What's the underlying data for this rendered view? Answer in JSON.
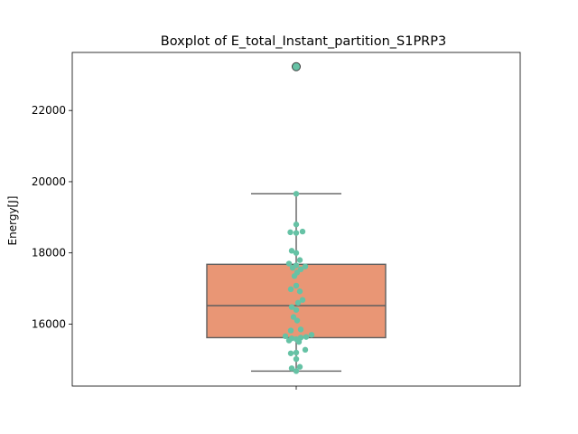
{
  "chart_data": {
    "type": "box",
    "title": "Boxplot of E_total_Instant_partition_S1PRP3",
    "xlabel": "",
    "ylabel": "Energy[J]",
    "ylim": [
      14260,
      23630
    ],
    "yticks": [
      16000,
      18000,
      20000,
      22000
    ],
    "grid": false,
    "box": {
      "whisker_low": 14680,
      "q1": 15620,
      "median": 16520,
      "q3": 17680,
      "whisker_high": 19660,
      "outliers": [
        23230
      ]
    },
    "points": [
      {
        "y": 23230,
        "offset": 0.0
      },
      {
        "y": 19660,
        "offset": 0.0
      },
      {
        "y": 18800,
        "offset": 0.0
      },
      {
        "y": 18600,
        "offset": 0.14
      },
      {
        "y": 18580,
        "offset": -0.13
      },
      {
        "y": 18560,
        "offset": 0.0
      },
      {
        "y": 18060,
        "offset": -0.1
      },
      {
        "y": 18000,
        "offset": 0.0
      },
      {
        "y": 17800,
        "offset": 0.08
      },
      {
        "y": 17700,
        "offset": -0.16
      },
      {
        "y": 17650,
        "offset": 0.0
      },
      {
        "y": 17620,
        "offset": 0.2
      },
      {
        "y": 17580,
        "offset": -0.08
      },
      {
        "y": 17540,
        "offset": 0.1
      },
      {
        "y": 17450,
        "offset": 0.02
      },
      {
        "y": 17350,
        "offset": -0.04
      },
      {
        "y": 17080,
        "offset": 0.0
      },
      {
        "y": 16980,
        "offset": -0.12
      },
      {
        "y": 16920,
        "offset": 0.08
      },
      {
        "y": 16680,
        "offset": 0.14
      },
      {
        "y": 16600,
        "offset": 0.04
      },
      {
        "y": 16480,
        "offset": -0.1
      },
      {
        "y": 16400,
        "offset": 0.0
      },
      {
        "y": 16200,
        "offset": -0.06
      },
      {
        "y": 16100,
        "offset": 0.02
      },
      {
        "y": 15850,
        "offset": 0.1
      },
      {
        "y": 15820,
        "offset": -0.12
      },
      {
        "y": 15700,
        "offset": 0.34
      },
      {
        "y": 15660,
        "offset": -0.24
      },
      {
        "y": 15640,
        "offset": 0.22
      },
      {
        "y": 15620,
        "offset": 0.1
      },
      {
        "y": 15600,
        "offset": -0.1
      },
      {
        "y": 15580,
        "offset": 0.0
      },
      {
        "y": 15540,
        "offset": -0.16
      },
      {
        "y": 15500,
        "offset": 0.06
      },
      {
        "y": 15280,
        "offset": 0.2
      },
      {
        "y": 15200,
        "offset": 0.0
      },
      {
        "y": 15180,
        "offset": -0.12
      },
      {
        "y": 15020,
        "offset": 0.0
      },
      {
        "y": 14800,
        "offset": 0.08
      },
      {
        "y": 14760,
        "offset": -0.1
      },
      {
        "y": 14680,
        "offset": 0.0
      }
    ],
    "colors": {
      "box_fill": "#e99675",
      "box_edge": "#5f5f5f",
      "points": "#66c2a5",
      "outlier_fill": "#66c2a5",
      "outlier_edge": "#3c3c3c",
      "axes": "#000000"
    }
  }
}
